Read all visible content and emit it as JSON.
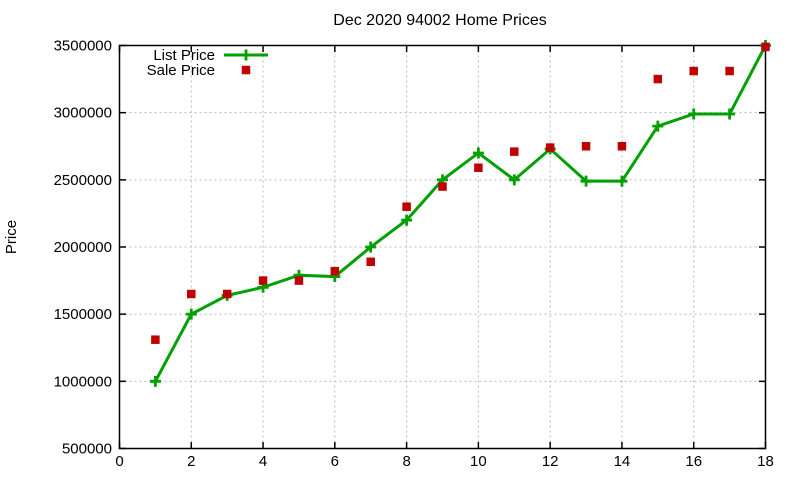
{
  "page": {
    "background": "#ffffff"
  },
  "chart": {
    "title": "Dec 2020 94002 Home Prices",
    "ylabel": "Price",
    "axis_color": "#000000",
    "grid_color": "#b8b8b8",
    "text_color": "#000000",
    "legend": {
      "position": "top-left",
      "items": [
        {
          "label": "List Price",
          "sample": "green-line-with-plus-marker",
          "color": "#00a000"
        },
        {
          "label": "Sale Price",
          "sample": "red-filled-square",
          "color": "#c00000"
        }
      ]
    }
  },
  "chart_data": {
    "type": "line",
    "title": "Dec 2020 94002 Home Prices",
    "xlabel": "",
    "ylabel": "Price",
    "x": [
      1,
      2,
      3,
      4,
      5,
      6,
      7,
      8,
      9,
      10,
      11,
      12,
      13,
      14,
      15,
      16,
      17,
      18
    ],
    "series": [
      {
        "name": "List Price",
        "style": "linespoints",
        "marker": "plus",
        "color": "#00a000",
        "values": [
          1000000,
          1500000,
          1640000,
          1700000,
          1790000,
          1780000,
          2000000,
          2200000,
          2500000,
          2700000,
          2500000,
          2730000,
          2490000,
          2490000,
          2900000,
          2990000,
          2990000,
          3500000
        ]
      },
      {
        "name": "Sale Price",
        "style": "points",
        "marker": "filled-square",
        "color": "#c00000",
        "values": [
          1310000,
          1650000,
          1650000,
          1750000,
          1750000,
          1820000,
          1890000,
          2300000,
          2450000,
          2590000,
          2710000,
          2740000,
          2750000,
          2750000,
          3250000,
          3310000,
          3310000,
          3490000
        ]
      }
    ],
    "xlim": [
      0,
      18
    ],
    "ylim": [
      500000,
      3500000
    ],
    "x_ticks": [
      0,
      2,
      4,
      6,
      8,
      10,
      12,
      14,
      16,
      18
    ],
    "y_ticks": [
      500000,
      1000000,
      1500000,
      2000000,
      2500000,
      3000000,
      3500000
    ],
    "grid": true,
    "legend_position": "top-left"
  }
}
